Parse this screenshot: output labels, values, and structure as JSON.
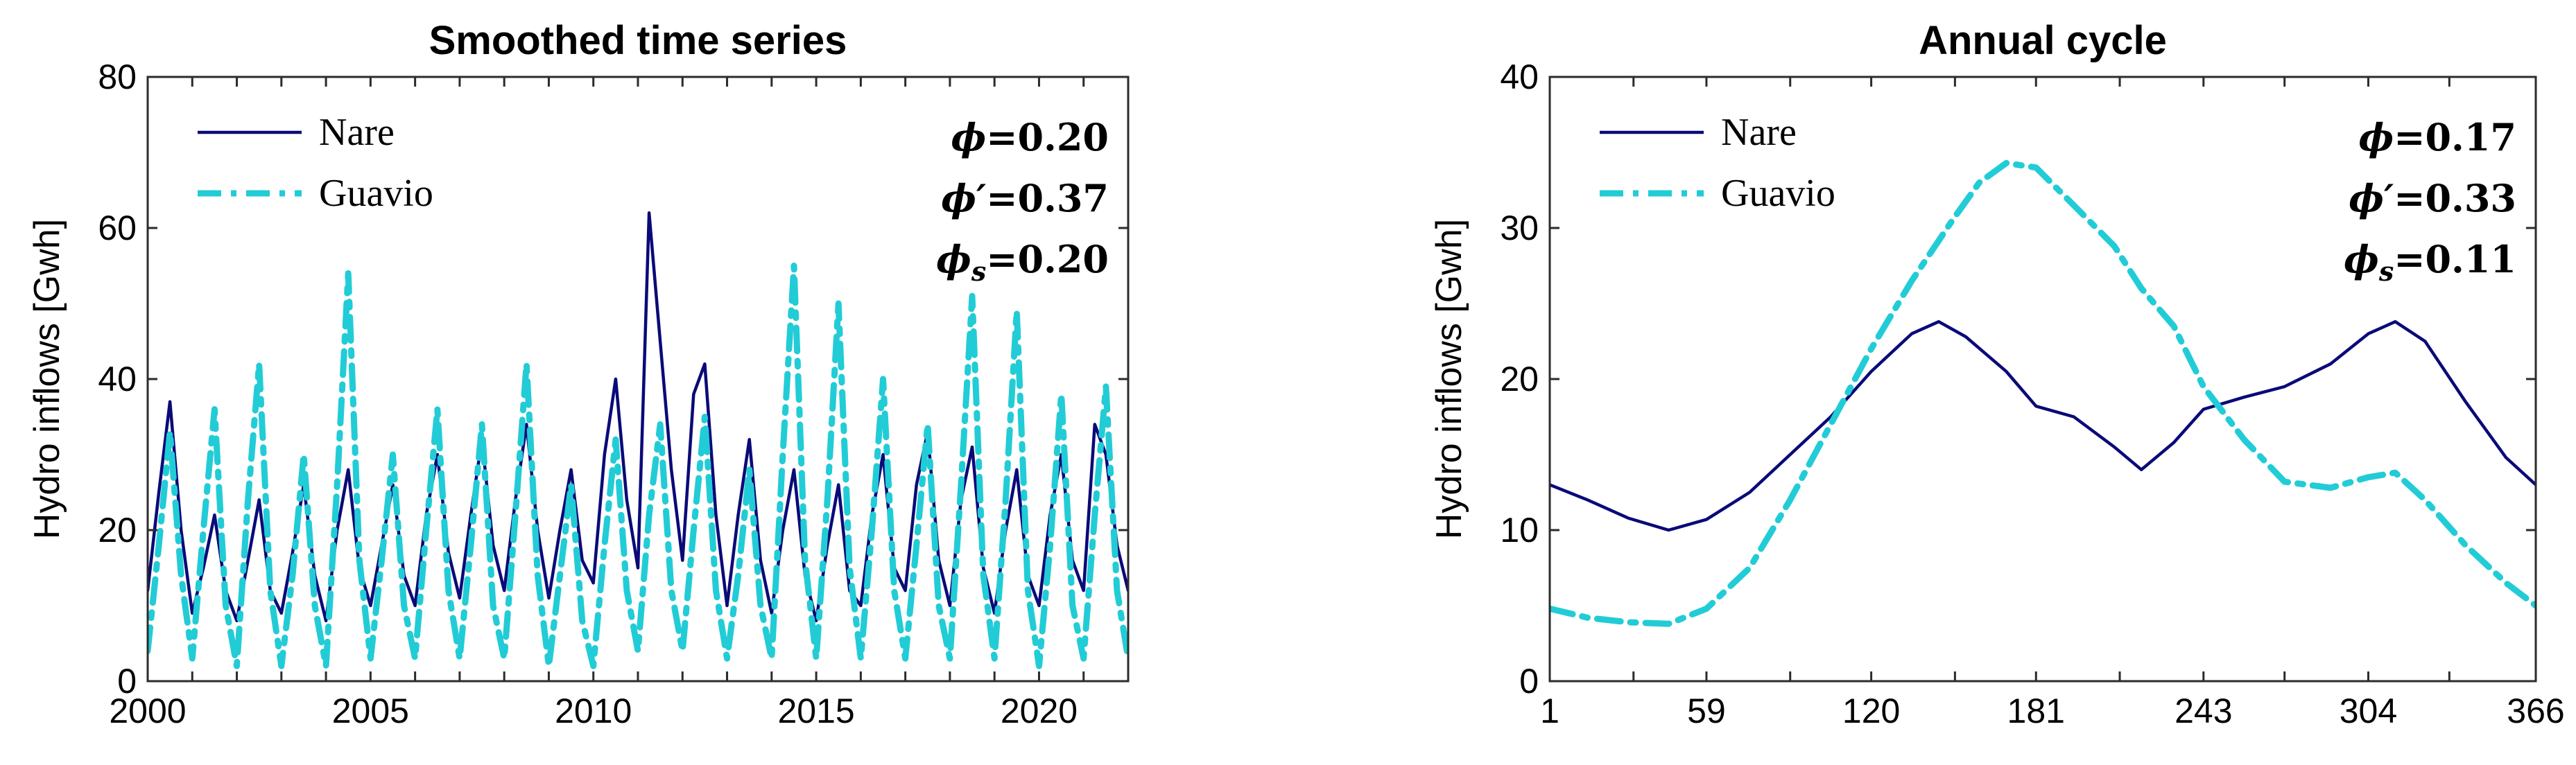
{
  "chart_data": [
    {
      "type": "line",
      "title": "Smoothed time series",
      "ylabel": "Hydro inflows [Gwh]",
      "xlabel": "",
      "xlim": [
        2000,
        2022
      ],
      "ylim": [
        0,
        80
      ],
      "xticks": [
        2000,
        2005,
        2010,
        2015,
        2020
      ],
      "minor_xticks": [
        2001,
        2002,
        2003,
        2004,
        2006,
        2007,
        2008,
        2009,
        2011,
        2012,
        2013,
        2014,
        2016,
        2017,
        2018,
        2019,
        2021
      ],
      "yticks": [
        0,
        20,
        40,
        60,
        80
      ],
      "legend": {
        "position": "top-left",
        "entries": [
          "Nare",
          "Guavio"
        ]
      },
      "stats": [
        {
          "symbol": "ϕ",
          "sub": "",
          "value": "=0.20"
        },
        {
          "symbol": "ϕ′",
          "sub": "",
          "value": "=0.37"
        },
        {
          "symbol": "ϕ",
          "sub": "s",
          "value": "=0.20"
        }
      ],
      "series": [
        {
          "name": "Nare",
          "color": "#0a0a78",
          "style": "solid",
          "x": [
            2000.0,
            2000.25,
            2000.5,
            2000.75,
            2001.0,
            2001.25,
            2001.5,
            2001.75,
            2002.0,
            2002.25,
            2002.5,
            2002.75,
            2003.0,
            2003.25,
            2003.5,
            2003.75,
            2004.0,
            2004.25,
            2004.5,
            2004.75,
            2005.0,
            2005.25,
            2005.5,
            2005.75,
            2006.0,
            2006.25,
            2006.5,
            2006.75,
            2007.0,
            2007.25,
            2007.5,
            2007.75,
            2008.0,
            2008.25,
            2008.5,
            2008.75,
            2009.0,
            2009.25,
            2009.5,
            2009.75,
            2010.0,
            2010.25,
            2010.5,
            2010.75,
            2011.0,
            2011.25,
            2011.5,
            2011.75,
            2012.0,
            2012.25,
            2012.5,
            2012.75,
            2013.0,
            2013.25,
            2013.5,
            2013.75,
            2014.0,
            2014.25,
            2014.5,
            2014.75,
            2015.0,
            2015.25,
            2015.5,
            2015.75,
            2016.0,
            2016.25,
            2016.5,
            2016.75,
            2017.0,
            2017.25,
            2017.5,
            2017.75,
            2018.0,
            2018.25,
            2018.5,
            2018.75,
            2019.0,
            2019.25,
            2019.5,
            2019.75,
            2020.0,
            2020.25,
            2020.5,
            2020.75,
            2021.0,
            2021.25,
            2021.5,
            2021.75,
            2022.0
          ],
          "values": [
            12,
            25,
            37,
            20,
            9,
            15,
            22,
            12,
            8,
            16,
            24,
            12,
            9,
            17,
            26,
            14,
            8,
            20,
            28,
            15,
            10,
            18,
            26,
            14,
            10,
            22,
            30,
            17,
            11,
            22,
            32,
            18,
            12,
            24,
            34,
            20,
            11,
            20,
            28,
            16,
            13,
            30,
            40,
            24,
            15,
            62,
            45,
            28,
            16,
            38,
            42,
            22,
            10,
            22,
            32,
            16,
            9,
            20,
            28,
            14,
            8,
            18,
            26,
            12,
            10,
            22,
            30,
            15,
            12,
            26,
            33,
            16,
            10,
            24,
            31,
            15,
            9,
            20,
            28,
            14,
            10,
            22,
            30,
            16,
            12,
            34,
            30,
            18,
            12
          ]
        },
        {
          "name": "Guavio",
          "color": "#22ccd6",
          "style": "dashdot",
          "x": [
            2000.0,
            2000.25,
            2000.5,
            2000.75,
            2001.0,
            2001.25,
            2001.5,
            2001.75,
            2002.0,
            2002.25,
            2002.5,
            2002.75,
            2003.0,
            2003.25,
            2003.5,
            2003.75,
            2004.0,
            2004.25,
            2004.5,
            2004.75,
            2005.0,
            2005.25,
            2005.5,
            2005.75,
            2006.0,
            2006.25,
            2006.5,
            2006.75,
            2007.0,
            2007.25,
            2007.5,
            2007.75,
            2008.0,
            2008.25,
            2008.5,
            2008.75,
            2009.0,
            2009.25,
            2009.5,
            2009.75,
            2010.0,
            2010.25,
            2010.5,
            2010.75,
            2011.0,
            2011.25,
            2011.5,
            2011.75,
            2012.0,
            2012.25,
            2012.5,
            2012.75,
            2013.0,
            2013.25,
            2013.5,
            2013.75,
            2014.0,
            2014.25,
            2014.5,
            2014.75,
            2015.0,
            2015.25,
            2015.5,
            2015.75,
            2016.0,
            2016.25,
            2016.5,
            2016.75,
            2017.0,
            2017.25,
            2017.5,
            2017.75,
            2018.0,
            2018.25,
            2018.5,
            2018.75,
            2019.0,
            2019.25,
            2019.5,
            2019.75,
            2020.0,
            2020.25,
            2020.5,
            2020.75,
            2021.0,
            2021.25,
            2021.5,
            2021.75,
            2022.0
          ],
          "values": [
            4,
            18,
            33,
            14,
            3,
            20,
            36,
            10,
            2,
            24,
            42,
            12,
            2,
            14,
            30,
            10,
            2,
            26,
            54,
            16,
            3,
            16,
            30,
            10,
            3,
            20,
            36,
            12,
            3,
            18,
            34,
            10,
            3,
            22,
            42,
            14,
            2,
            14,
            26,
            8,
            2,
            18,
            32,
            12,
            4,
            22,
            34,
            12,
            4,
            20,
            35,
            12,
            3,
            14,
            28,
            10,
            3,
            30,
            55,
            16,
            3,
            24,
            50,
            15,
            3,
            20,
            40,
            12,
            3,
            18,
            34,
            10,
            3,
            26,
            51,
            14,
            3,
            24,
            49,
            12,
            2,
            18,
            38,
            10,
            3,
            22,
            39,
            12,
            3
          ]
        }
      ]
    },
    {
      "type": "line",
      "title": "Annual cycle",
      "ylabel": "Hydro inflows [Gwh]",
      "xlabel": "",
      "xlim": [
        1,
        366
      ],
      "ylim": [
        0,
        40
      ],
      "xticks": [
        1,
        59,
        120,
        181,
        243,
        304,
        366
      ],
      "minor_xticks": [
        32,
        90,
        151,
        212,
        273,
        334
      ],
      "yticks": [
        0,
        10,
        20,
        30,
        40
      ],
      "legend": {
        "position": "top-left",
        "entries": [
          "Nare",
          "Guavio"
        ]
      },
      "stats": [
        {
          "symbol": "ϕ",
          "sub": "",
          "value": "=0.17"
        },
        {
          "symbol": "ϕ′",
          "sub": "",
          "value": "=0.33"
        },
        {
          "symbol": "ϕ",
          "sub": "s",
          "value": "=0.11"
        }
      ],
      "series": [
        {
          "name": "Nare",
          "color": "#0a0a78",
          "style": "solid",
          "x": [
            1,
            15,
            30,
            45,
            59,
            75,
            90,
            105,
            120,
            135,
            145,
            155,
            170,
            181,
            195,
            210,
            220,
            232,
            243,
            258,
            273,
            290,
            304,
            314,
            325,
            340,
            355,
            366
          ],
          "values": [
            13,
            12,
            10.8,
            10,
            10.7,
            12.5,
            15,
            17.5,
            20.5,
            23,
            23.8,
            22.8,
            20.5,
            18.2,
            17.5,
            15.5,
            14,
            15.8,
            18,
            18.8,
            19.5,
            21,
            23,
            23.8,
            22.5,
            18.5,
            14.8,
            13
          ]
        },
        {
          "name": "Guavio",
          "color": "#22ccd6",
          "style": "dashdot",
          "x": [
            1,
            15,
            30,
            45,
            59,
            75,
            90,
            105,
            120,
            135,
            150,
            160,
            170,
            181,
            195,
            210,
            220,
            232,
            243,
            258,
            273,
            290,
            304,
            314,
            325,
            340,
            355,
            366
          ],
          "values": [
            4.8,
            4.2,
            3.9,
            3.8,
            4.8,
            7.5,
            12,
            17,
            22,
            26.5,
            30.5,
            33,
            34.3,
            34,
            31.5,
            28.8,
            26,
            23.5,
            19.5,
            16,
            13.2,
            12.8,
            13.5,
            13.8,
            12,
            9,
            6.5,
            5
          ]
        }
      ]
    }
  ]
}
